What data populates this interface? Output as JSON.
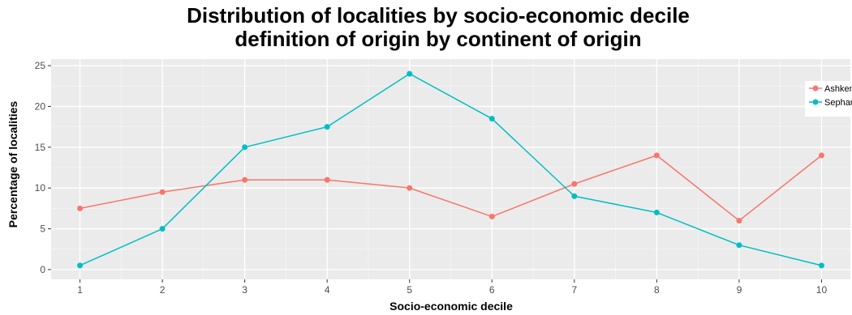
{
  "chart_data": {
    "type": "line",
    "title_line1": "Distribution of localities by socio-economic decile",
    "title_line2": "definition of origin by  continent of origin",
    "xlabel": "Socio-economic decile",
    "ylabel": "Percentage of localities",
    "x": [
      1,
      2,
      3,
      4,
      5,
      6,
      7,
      8,
      9,
      10
    ],
    "xlim": [
      0.65,
      10.35
    ],
    "ylim": [
      -1.2,
      25.8
    ],
    "yticks": [
      0,
      5,
      10,
      15,
      20,
      25
    ],
    "grid": true,
    "legend_position": "top-right",
    "series": [
      {
        "name": "Ashkenazi",
        "color": "#F8766D",
        "values": [
          7.5,
          9.5,
          11,
          11,
          10,
          6.5,
          10.5,
          14,
          6,
          14
        ]
      },
      {
        "name": "Sephardi",
        "color": "#00BFC4",
        "values": [
          0.5,
          5,
          15,
          17.5,
          24,
          18.5,
          9,
          7,
          3,
          0.5
        ]
      }
    ]
  }
}
